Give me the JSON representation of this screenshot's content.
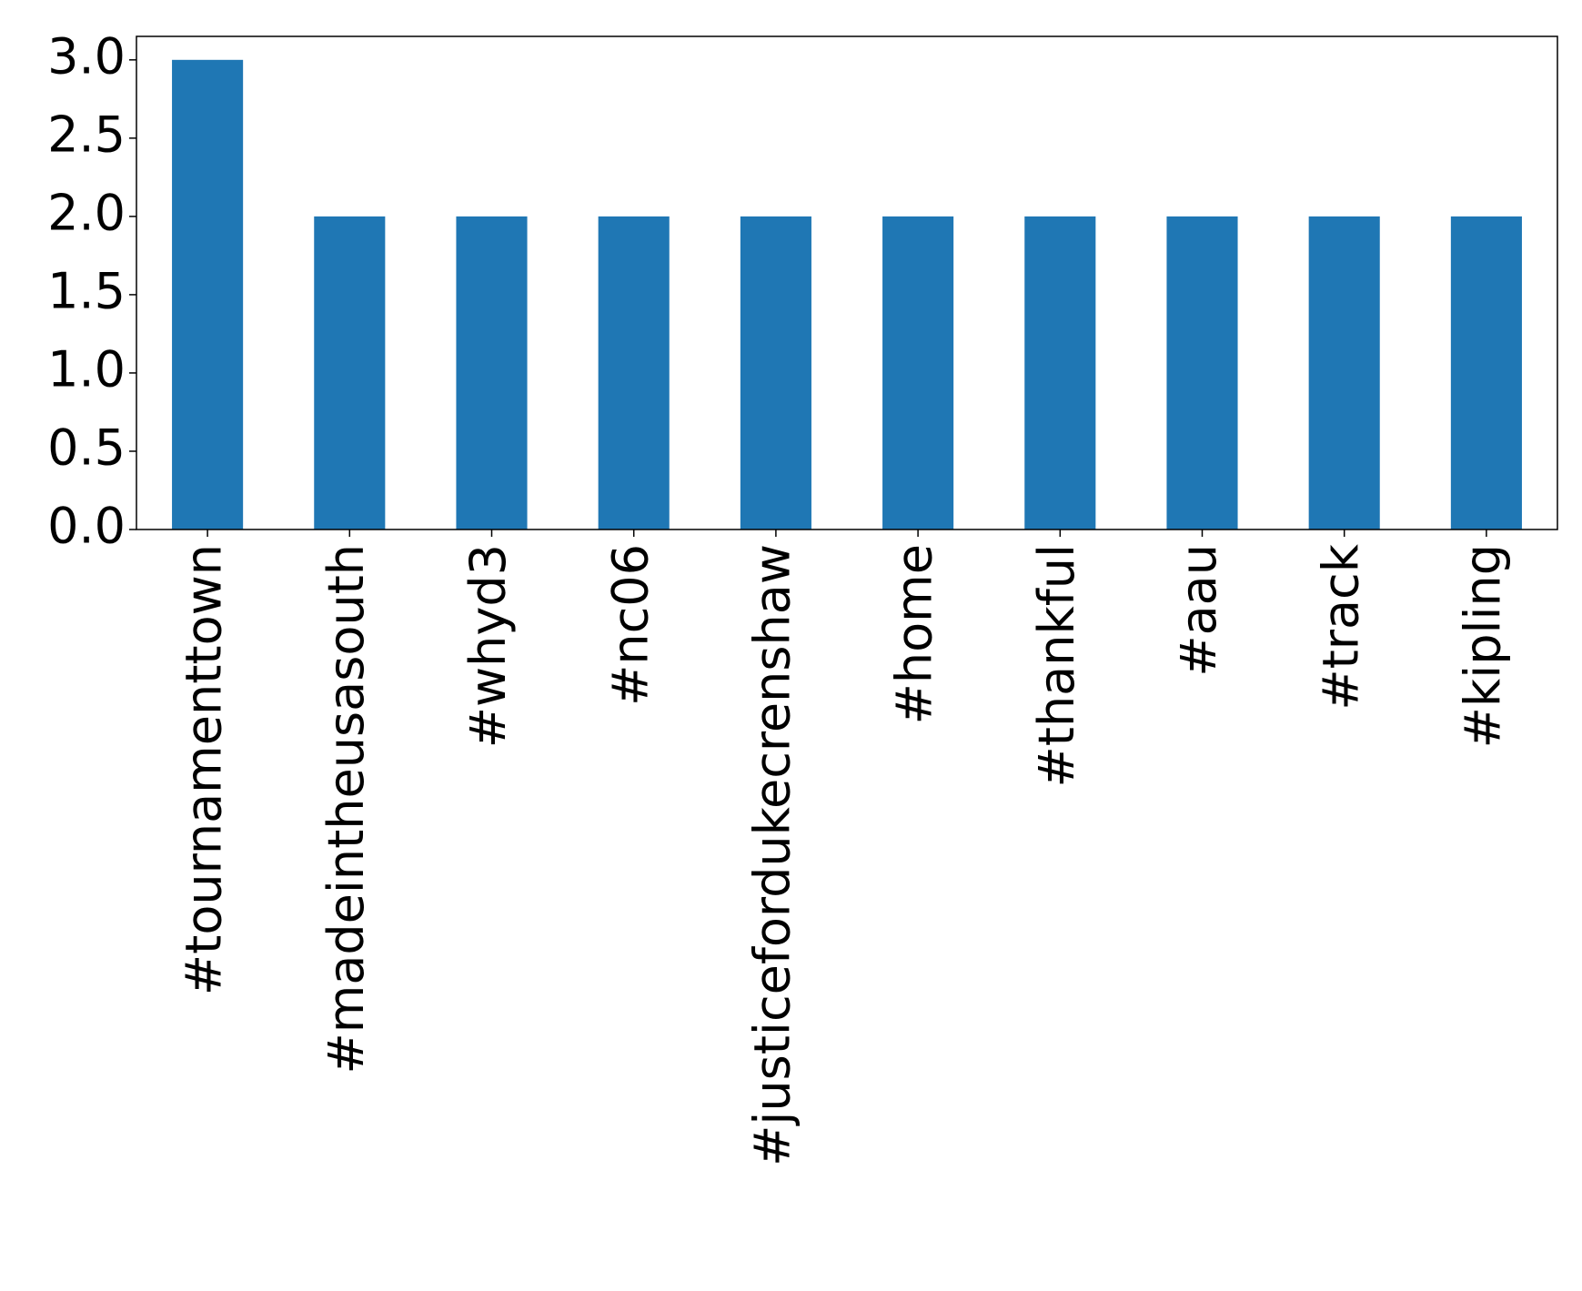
{
  "chart_data": {
    "type": "bar",
    "categories": [
      "#tournamenttown",
      "#madeintheusasouth",
      "#whyd3",
      "#nc06",
      "#justicefordukecrenshaw",
      "#home",
      "#thankful",
      "#aau",
      "#track",
      "#kipling"
    ],
    "values": [
      3,
      2,
      2,
      2,
      2,
      2,
      2,
      2,
      2,
      2
    ],
    "color": "#1f77b4",
    "ylim": [
      0,
      3.15
    ],
    "yticks": [
      {
        "value": 0,
        "label": "0.0"
      },
      {
        "value": 0.5,
        "label": "0.5"
      },
      {
        "value": 1,
        "label": "1.0"
      },
      {
        "value": 1.5,
        "label": "1.5"
      },
      {
        "value": 2,
        "label": "2.0"
      },
      {
        "value": 2.5,
        "label": "2.5"
      },
      {
        "value": 3,
        "label": "3.0"
      }
    ],
    "grid": false
  }
}
